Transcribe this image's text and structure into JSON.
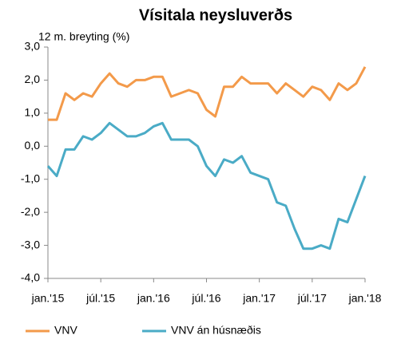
{
  "chart_data": {
    "type": "line",
    "title": "Vísitala neysluverðs",
    "y_label": "12 m. breyting (%)",
    "categories": [
      "jan.'15",
      null,
      null,
      null,
      null,
      null,
      "júl.'15",
      null,
      null,
      null,
      null,
      null,
      "jan.'16",
      null,
      null,
      null,
      null,
      null,
      "júl.'16",
      null,
      null,
      null,
      null,
      null,
      "jan.'17",
      null,
      null,
      null,
      null,
      null,
      "júl.'17",
      null,
      null,
      null,
      null,
      null,
      "jan.'18"
    ],
    "series": [
      {
        "name": "VNV",
        "color": "#f39a4a",
        "values": [
          0.8,
          0.8,
          1.6,
          1.4,
          1.6,
          1.5,
          1.9,
          2.2,
          1.9,
          1.8,
          2.0,
          2.0,
          2.1,
          2.1,
          1.5,
          1.6,
          1.7,
          1.6,
          1.1,
          0.9,
          1.8,
          1.8,
          2.1,
          1.9,
          1.9,
          1.9,
          1.6,
          1.9,
          1.7,
          1.5,
          1.8,
          1.7,
          1.4,
          1.9,
          1.7,
          1.9,
          2.4
        ]
      },
      {
        "name": "VNV án húsnæðis",
        "color": "#4aabc6",
        "values": [
          -0.6,
          -0.9,
          -0.1,
          -0.1,
          0.3,
          0.2,
          0.4,
          0.7,
          0.5,
          0.3,
          0.3,
          0.4,
          0.6,
          0.7,
          0.2,
          0.2,
          0.2,
          0.0,
          -0.6,
          -0.9,
          -0.4,
          -0.5,
          -0.3,
          -0.8,
          -0.9,
          -1.0,
          -1.7,
          -1.8,
          -2.5,
          -3.1,
          -3.1,
          -3.0,
          -3.1,
          -2.2,
          -2.3,
          -1.6,
          -0.9
        ]
      }
    ],
    "ylim": [
      -4,
      3
    ],
    "yticks": [
      {
        "value": 3,
        "label": "3,0"
      },
      {
        "value": 2,
        "label": "2,0"
      },
      {
        "value": 1,
        "label": "1,0"
      },
      {
        "value": 0,
        "label": "0,0"
      },
      {
        "value": -1,
        "label": "-1,0"
      },
      {
        "value": -2,
        "label": "-2,0"
      },
      {
        "value": -3,
        "label": "-3,0"
      },
      {
        "value": -4,
        "label": "-4,0"
      }
    ],
    "legend": "bottom"
  }
}
